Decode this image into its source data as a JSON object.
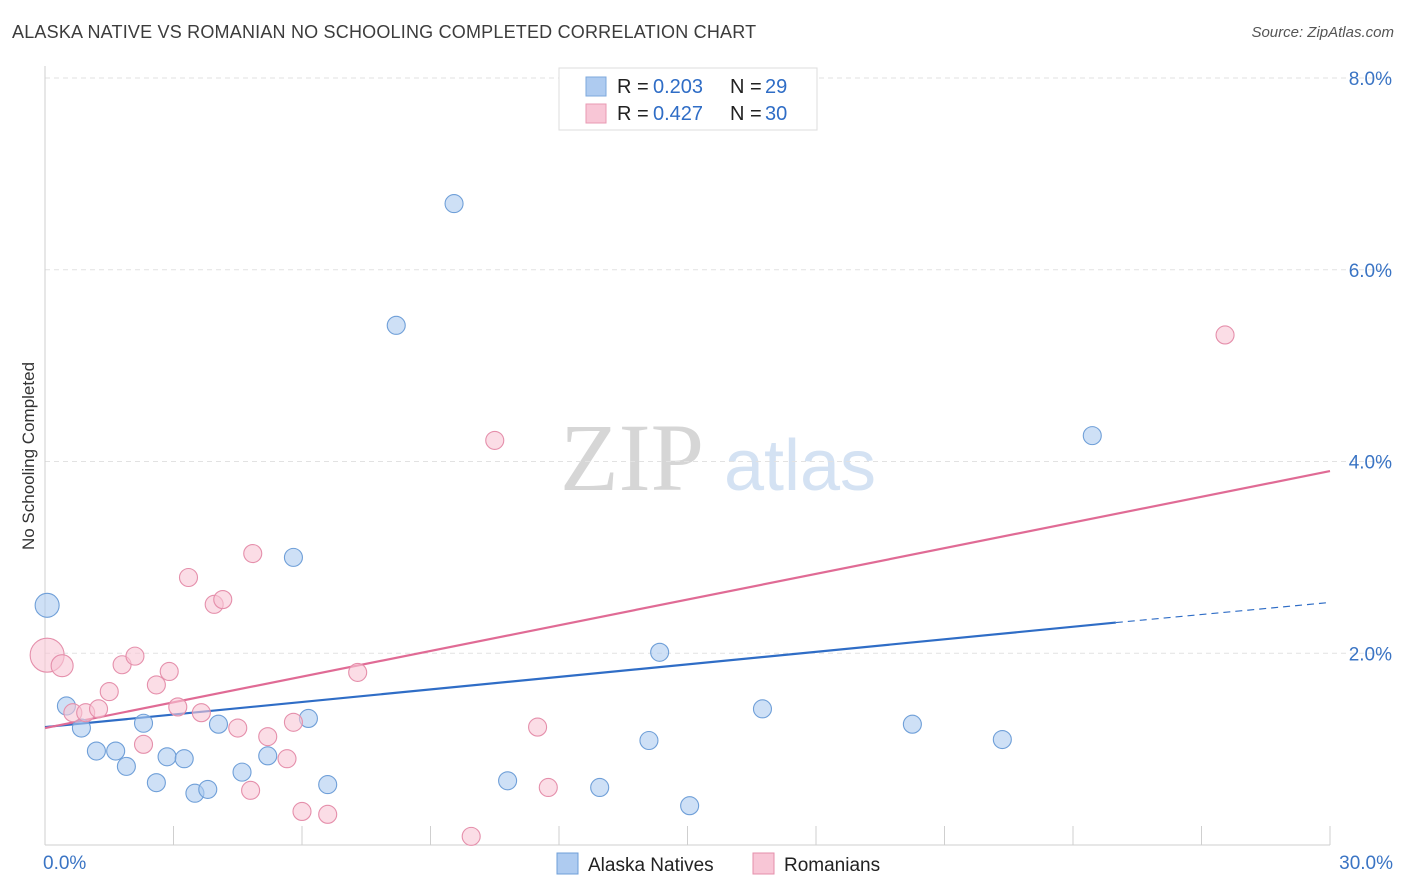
{
  "header": {
    "title": "ALASKA NATIVE VS ROMANIAN NO SCHOOLING COMPLETED CORRELATION CHART",
    "source": "Source: ZipAtlas.com"
  },
  "watermark": {
    "zip": "ZIP",
    "atlas": "atlas"
  },
  "stats_legend": [
    {
      "r_label": "R =",
      "r_value": "0.203",
      "n_label": "N =",
      "n_value": "29",
      "color": "#aecbf0",
      "stroke": "#7ea8dc"
    },
    {
      "r_label": "R =",
      "r_value": "0.427",
      "n_label": "N =",
      "n_value": "30",
      "color": "#f8c6d6",
      "stroke": "#e89ab3"
    }
  ],
  "chart_data": {
    "type": "scatter",
    "ylabel": "No Schooling Completed",
    "xlim": [
      0,
      30
    ],
    "ylim": [
      0,
      8
    ],
    "x_tick_labels": [
      {
        "value": 0,
        "label": "0.0%"
      },
      {
        "value": 30,
        "label": "30.0%"
      }
    ],
    "y_tick_labels": [
      {
        "value": 2,
        "label": "2.0%"
      },
      {
        "value": 4,
        "label": "4.0%"
      },
      {
        "value": 6,
        "label": "6.0%"
      },
      {
        "value": 8,
        "label": "8.0%"
      }
    ],
    "series": [
      {
        "name": "Alaska Natives",
        "color": "#aecbf0",
        "stroke": "#6f9fd8",
        "line_color": "#2f6dc6",
        "trend": {
          "x0": 0,
          "y0": 1.23,
          "x1": 25,
          "y1": 2.32,
          "dash_to_x": 30,
          "dash_to_y": 2.53
        },
        "points": [
          [
            0.05,
            2.5,
            12
          ],
          [
            0.5,
            1.45,
            9
          ],
          [
            0.85,
            1.22,
            9
          ],
          [
            1.2,
            0.98,
            9
          ],
          [
            1.65,
            0.98,
            9
          ],
          [
            1.9,
            0.82,
            9
          ],
          [
            2.3,
            1.27,
            9
          ],
          [
            2.6,
            0.65,
            9
          ],
          [
            2.85,
            0.92,
            9
          ],
          [
            3.25,
            0.9,
            9
          ],
          [
            3.5,
            0.54,
            9
          ],
          [
            3.8,
            0.58,
            9
          ],
          [
            4.05,
            1.26,
            9
          ],
          [
            4.6,
            0.76,
            9
          ],
          [
            5.2,
            0.93,
            9
          ],
          [
            5.8,
            3.0,
            9
          ],
          [
            6.15,
            1.32,
            9
          ],
          [
            6.6,
            0.63,
            9
          ],
          [
            8.2,
            5.42,
            9
          ],
          [
            9.55,
            6.69,
            9
          ],
          [
            10.8,
            0.67,
            9
          ],
          [
            12.95,
            0.6,
            9
          ],
          [
            14.1,
            1.09,
            9
          ],
          [
            14.35,
            2.01,
            9
          ],
          [
            15.05,
            0.41,
            9
          ],
          [
            16.75,
            1.42,
            9
          ],
          [
            20.25,
            1.26,
            9
          ],
          [
            22.35,
            1.1,
            9
          ],
          [
            24.45,
            4.27,
            9
          ]
        ]
      },
      {
        "name": "Romanians",
        "color": "#f8c6d6",
        "stroke": "#e58fab",
        "line_color": "#e06b95",
        "trend": {
          "x0": 0,
          "y0": 1.22,
          "x1": 30,
          "y1": 3.9
        },
        "points": [
          [
            0.05,
            1.98,
            17
          ],
          [
            0.4,
            1.87,
            11
          ],
          [
            0.65,
            1.38,
            9
          ],
          [
            0.95,
            1.38,
            9
          ],
          [
            1.25,
            1.42,
            9
          ],
          [
            1.5,
            1.6,
            9
          ],
          [
            1.8,
            1.88,
            9
          ],
          [
            2.1,
            1.97,
            9
          ],
          [
            2.3,
            1.05,
            9
          ],
          [
            2.6,
            1.67,
            9
          ],
          [
            2.9,
            1.81,
            9
          ],
          [
            3.1,
            1.44,
            9
          ],
          [
            3.35,
            2.79,
            9
          ],
          [
            3.65,
            1.38,
            9
          ],
          [
            3.95,
            2.51,
            9
          ],
          [
            4.15,
            2.56,
            9
          ],
          [
            4.5,
            1.22,
            9
          ],
          [
            4.8,
            0.57,
            9
          ],
          [
            4.85,
            3.04,
            9
          ],
          [
            5.2,
            1.13,
            9
          ],
          [
            5.65,
            0.9,
            9
          ],
          [
            5.8,
            1.28,
            9
          ],
          [
            6.0,
            0.35,
            9
          ],
          [
            6.6,
            0.32,
            9
          ],
          [
            7.3,
            1.8,
            9
          ],
          [
            9.95,
            0.09,
            9
          ],
          [
            10.5,
            4.22,
            9
          ],
          [
            11.5,
            1.23,
            9
          ],
          [
            11.75,
            0.6,
            9
          ],
          [
            27.55,
            5.32,
            9
          ]
        ]
      }
    ],
    "legend": [
      "Alaska Natives",
      "Romanians"
    ],
    "grid": true
  }
}
